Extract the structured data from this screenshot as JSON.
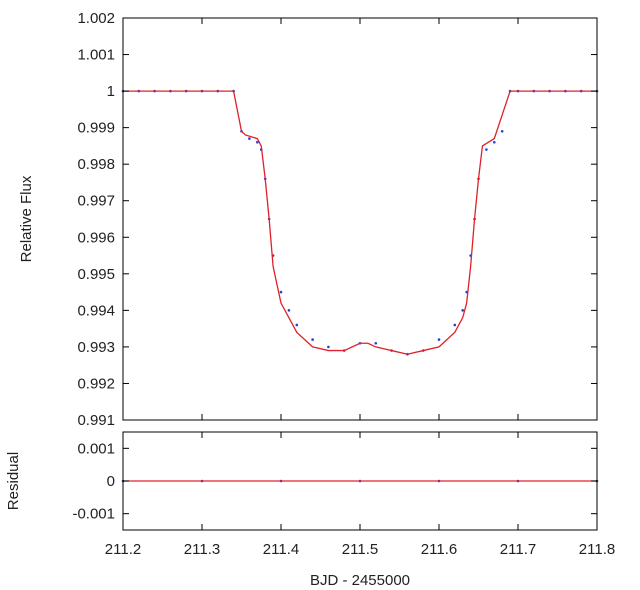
{
  "chart_data": [
    {
      "type": "scatter",
      "panel": "main",
      "xlabel": "",
      "ylabel": "Relative Flux",
      "xlim": [
        211.2,
        211.8
      ],
      "ylim": [
        0.991,
        1.002
      ],
      "xticks": [
        "211.2",
        "211.3",
        "211.4",
        "211.5",
        "211.6",
        "211.7",
        "211.8"
      ],
      "yticks": [
        "0.991",
        "0.992",
        "0.993",
        "0.994",
        "0.995",
        "0.996",
        "0.997",
        "0.998",
        "0.999",
        "1",
        "1.001",
        "1.002"
      ],
      "grid": false,
      "legend": "none",
      "series": [
        {
          "style": "points",
          "color": "#2a3fd6",
          "x": [
            211.2,
            211.22,
            211.24,
            211.26,
            211.28,
            211.3,
            211.32,
            211.34,
            211.35,
            211.36,
            211.37,
            211.375,
            211.38,
            211.385,
            211.39,
            211.4,
            211.41,
            211.42,
            211.44,
            211.46,
            211.48,
            211.5,
            211.52,
            211.54,
            211.56,
            211.58,
            211.6,
            211.62,
            211.63,
            211.635,
            211.64,
            211.645,
            211.65,
            211.66,
            211.67,
            211.68,
            211.69,
            211.7,
            211.72,
            211.74,
            211.76,
            211.78,
            211.8
          ],
          "y": [
            1.0,
            1.0,
            1.0,
            1.0,
            1.0,
            1.0,
            1.0,
            1.0,
            0.9989,
            0.9987,
            0.9986,
            0.9984,
            0.9976,
            0.9965,
            0.9955,
            0.9945,
            0.994,
            0.9936,
            0.9932,
            0.993,
            0.9929,
            0.9931,
            0.9931,
            0.9929,
            0.9928,
            0.9929,
            0.9932,
            0.9936,
            0.994,
            0.9945,
            0.9955,
            0.9965,
            0.9976,
            0.9984,
            0.9986,
            0.9989,
            1.0,
            1.0,
            1.0,
            1.0,
            1.0,
            1.0,
            1.0
          ]
        },
        {
          "style": "line",
          "color": "#e0202a",
          "x": [
            211.2,
            211.34,
            211.35,
            211.355,
            211.37,
            211.375,
            211.38,
            211.385,
            211.39,
            211.4,
            211.41,
            211.42,
            211.44,
            211.46,
            211.48,
            211.5,
            211.51,
            211.52,
            211.54,
            211.56,
            211.58,
            211.6,
            211.62,
            211.63,
            211.635,
            211.64,
            211.645,
            211.65,
            211.655,
            211.67,
            211.69,
            211.8
          ],
          "y": [
            1.0,
            1.0,
            0.9989,
            0.9988,
            0.9987,
            0.9985,
            0.9976,
            0.9965,
            0.9952,
            0.9942,
            0.9938,
            0.9934,
            0.993,
            0.9929,
            0.9929,
            0.9931,
            0.9931,
            0.993,
            0.9929,
            0.9928,
            0.9929,
            0.993,
            0.9934,
            0.9938,
            0.9942,
            0.9952,
            0.9965,
            0.9976,
            0.9985,
            0.9987,
            1.0,
            1.0
          ]
        }
      ]
    },
    {
      "type": "scatter",
      "panel": "residual",
      "xlabel": "BJD - 2455000",
      "ylabel": "Residual",
      "xlim": [
        211.2,
        211.8
      ],
      "ylim": [
        -0.0015,
        0.0015
      ],
      "xticks": [
        "211.2",
        "211.3",
        "211.4",
        "211.5",
        "211.6",
        "211.7",
        "211.8"
      ],
      "yticks": [
        "-0.001",
        "0",
        "0.001"
      ],
      "grid": false,
      "legend": "none",
      "series": [
        {
          "style": "points",
          "color": "#2a3fd6",
          "x": [
            211.2,
            211.3,
            211.4,
            211.5,
            211.6,
            211.7,
            211.8
          ],
          "y": [
            0.0,
            0.0,
            0.0,
            0.0,
            0.0,
            0.0,
            0.0
          ]
        },
        {
          "style": "line",
          "color": "#e0202a",
          "x": [
            211.2,
            211.8
          ],
          "y": [
            0.0,
            0.0
          ]
        }
      ]
    }
  ]
}
